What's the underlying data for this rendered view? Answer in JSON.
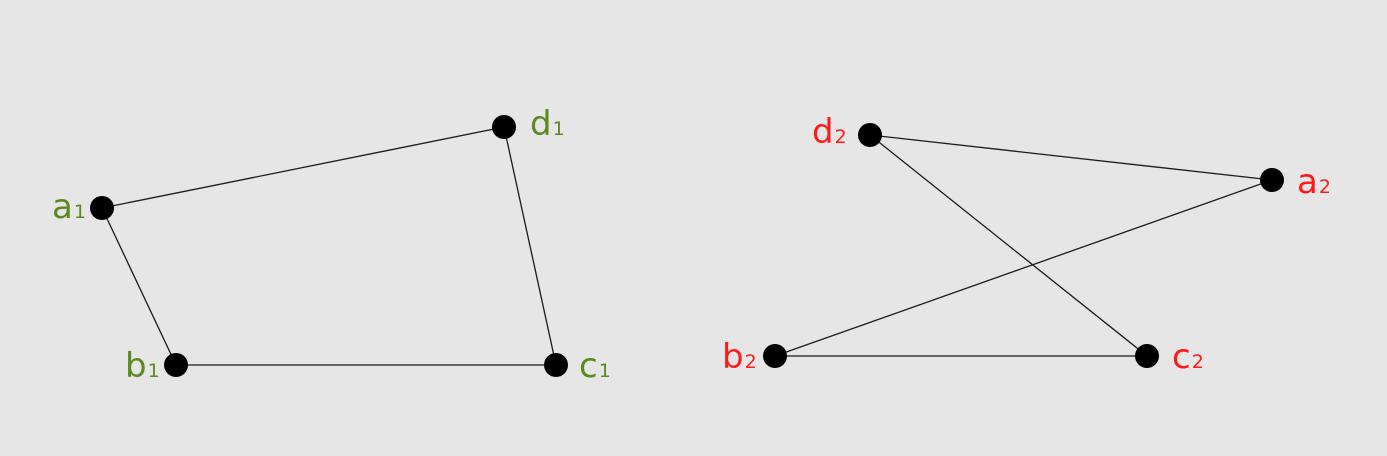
{
  "graphs": [
    {
      "id": "graph-1",
      "color": "#5a8a1e",
      "vertices": [
        {
          "id": "a1",
          "letter": "a",
          "sub": "1"
        },
        {
          "id": "b1",
          "letter": "b",
          "sub": "1"
        },
        {
          "id": "c1",
          "letter": "c",
          "sub": "1"
        },
        {
          "id": "d1",
          "letter": "d",
          "sub": "1"
        }
      ],
      "edges": [
        [
          "a1",
          "b1"
        ],
        [
          "b1",
          "c1"
        ],
        [
          "c1",
          "d1"
        ],
        [
          "d1",
          "a1"
        ]
      ]
    },
    {
      "id": "graph-2",
      "color": "#ff1a1a",
      "vertices": [
        {
          "id": "a2",
          "letter": "a",
          "sub": "2"
        },
        {
          "id": "b2",
          "letter": "b",
          "sub": "2"
        },
        {
          "id": "c2",
          "letter": "c",
          "sub": "2"
        },
        {
          "id": "d2",
          "letter": "d",
          "sub": "2"
        }
      ],
      "edges": [
        [
          "d2",
          "a2"
        ],
        [
          "d2",
          "c2"
        ],
        [
          "a2",
          "b2"
        ],
        [
          "b2",
          "c2"
        ]
      ]
    }
  ]
}
